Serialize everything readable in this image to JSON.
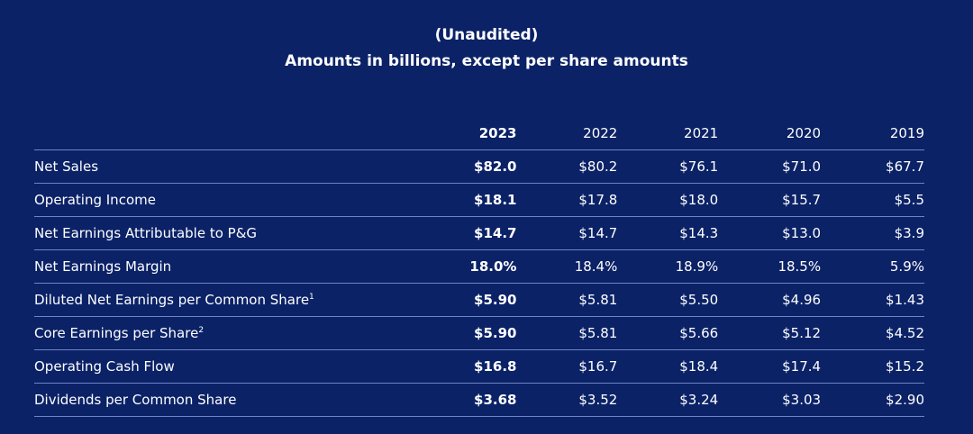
{
  "header": {
    "line1": "(Unaudited)",
    "line2": "Amounts in billions, except per share amounts"
  },
  "table": {
    "columns": [
      "2023",
      "2022",
      "2021",
      "2020",
      "2019"
    ],
    "rows": [
      {
        "label": "Net Sales",
        "sup": "",
        "values": [
          "$82.0",
          "$80.2",
          "$76.1",
          "$71.0",
          "$67.7"
        ]
      },
      {
        "label": "Operating Income",
        "sup": "",
        "values": [
          "$18.1",
          "$17.8",
          "$18.0",
          "$15.7",
          "$5.5"
        ]
      },
      {
        "label": "Net Earnings Attributable to P&G",
        "sup": "",
        "values": [
          "$14.7",
          "$14.7",
          "$14.3",
          "$13.0",
          "$3.9"
        ]
      },
      {
        "label": "Net Earnings Margin",
        "sup": "",
        "values": [
          "18.0%",
          "18.4%",
          "18.9%",
          "18.5%",
          "5.9%"
        ]
      },
      {
        "label": "Diluted Net Earnings per Common Share",
        "sup": "1",
        "values": [
          "$5.90",
          "$5.81",
          "$5.50",
          "$4.96",
          "$1.43"
        ]
      },
      {
        "label": "Core Earnings per Share",
        "sup": "2",
        "values": [
          "$5.90",
          "$5.81",
          "$5.66",
          "$5.12",
          "$4.52"
        ]
      },
      {
        "label": "Operating Cash Flow",
        "sup": "",
        "values": [
          "$16.8",
          "$16.7",
          "$18.4",
          "$17.4",
          "$15.2"
        ]
      },
      {
        "label": "Dividends per Common Share",
        "sup": "",
        "values": [
          "$3.68",
          "$3.52",
          "$3.24",
          "$3.03",
          "$2.90"
        ]
      }
    ]
  },
  "colors": {
    "background": "#0b2267",
    "text": "#ffffff",
    "rule": "#6f84c2"
  }
}
